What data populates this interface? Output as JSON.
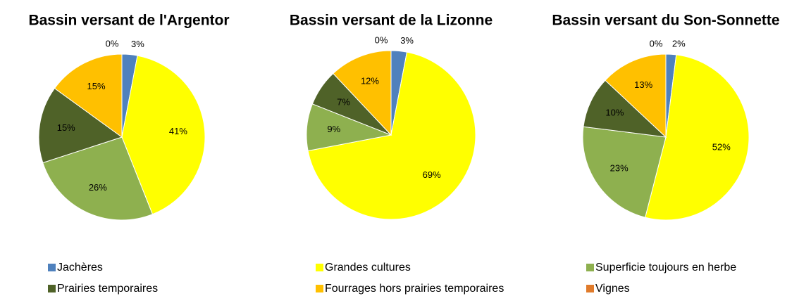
{
  "chart_data": [
    {
      "type": "pie",
      "title": "Bassin versant de l'Argentor",
      "categories": [
        "Jachères",
        "Grandes cultures",
        "Superficie toujours en herbe",
        "Prairies temporaires",
        "Fourrages hors prairies temporaires",
        "Vignes"
      ],
      "values": [
        3,
        41,
        26,
        15,
        15,
        0
      ],
      "value_labels": [
        "3%",
        "41%",
        "26%",
        "15%",
        "15%",
        "0%"
      ],
      "colors": [
        "#4f81bd",
        "#ffff00",
        "#8eb04f",
        "#4f6228",
        "#ffc000",
        "#e07b2b"
      ]
    },
    {
      "type": "pie",
      "title": "Bassin versant de la Lizonne",
      "categories": [
        "Jachères",
        "Grandes cultures",
        "Superficie toujours en herbe",
        "Prairies temporaires",
        "Fourrages hors prairies temporaires",
        "Vignes"
      ],
      "values": [
        3,
        69,
        9,
        7,
        12,
        0
      ],
      "value_labels": [
        "3%",
        "69%",
        "9%",
        "7%",
        "12%",
        "0%"
      ],
      "colors": [
        "#4f81bd",
        "#ffff00",
        "#8eb04f",
        "#4f6228",
        "#ffc000",
        "#e07b2b"
      ]
    },
    {
      "type": "pie",
      "title": "Bassin versant du Son-Sonnette",
      "categories": [
        "Jachères",
        "Grandes cultures",
        "Superficie toujours en herbe",
        "Prairies temporaires",
        "Fourrages hors prairies temporaires",
        "Vignes"
      ],
      "values": [
        2,
        52,
        23,
        10,
        13,
        0
      ],
      "value_labels": [
        "2%",
        "52%",
        "23%",
        "10%",
        "13%",
        "0%"
      ],
      "colors": [
        "#4f81bd",
        "#ffff00",
        "#8eb04f",
        "#4f6228",
        "#ffc000",
        "#e07b2b"
      ]
    }
  ]
}
